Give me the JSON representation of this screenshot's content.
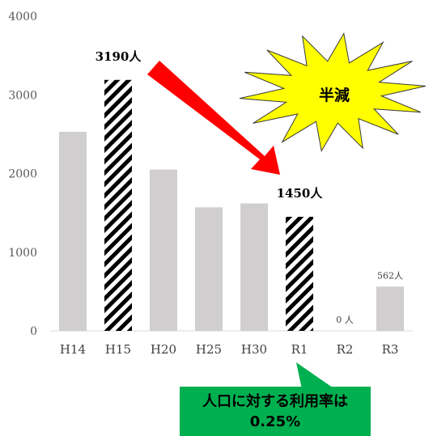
{
  "chart_data": {
    "type": "bar",
    "categories": [
      "H14",
      "H15",
      "H20",
      "H25",
      "H30",
      "R1",
      "R2",
      "R3"
    ],
    "values": [
      2530,
      3190,
      2050,
      1570,
      1620,
      1450,
      0,
      562
    ],
    "highlighted": [
      "H15",
      "R1"
    ],
    "ylim": [
      0,
      4000
    ],
    "yticks": [
      0,
      1000,
      2000,
      3000,
      4000
    ],
    "grid": false,
    "colors": {
      "bar": "#d0cece",
      "highlight": "#000000",
      "arrow": "#ff0000",
      "starburst": "#ffff00",
      "callout": "#00b050"
    },
    "data_labels": [
      {
        "category": "H15",
        "text": "3190人"
      },
      {
        "category": "R1",
        "text": "1450人"
      },
      {
        "category": "R2",
        "text": "0 人"
      },
      {
        "category": "R3",
        "text": "562人"
      }
    ],
    "annotations": {
      "starburst_text": "半減",
      "callout_line1": "人口に対する利用率は",
      "callout_line2": "0.25%"
    }
  }
}
